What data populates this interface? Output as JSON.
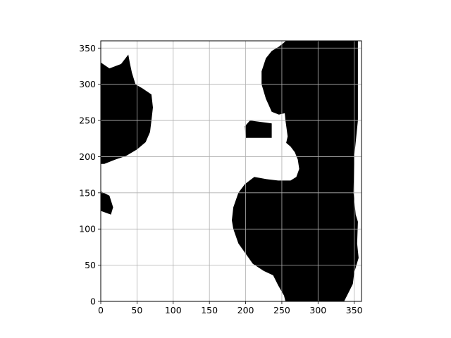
{
  "chart_data": {
    "type": "heatmap",
    "title": "",
    "xlabel": "",
    "ylabel": "",
    "xlim": [
      0,
      360
    ],
    "ylim": [
      0,
      360
    ],
    "xticks": [
      0,
      50,
      100,
      150,
      200,
      250,
      300,
      350
    ],
    "yticks": [
      0,
      50,
      100,
      150,
      200,
      250,
      300,
      350
    ],
    "grid": true,
    "colormap": {
      "0": "#ffffff",
      "1": "#000000"
    },
    "regions": [
      {
        "name": "upper-left-mass",
        "value": 1,
        "outline": [
          [
            0,
            190
          ],
          [
            5,
            190
          ],
          [
            20,
            196
          ],
          [
            35,
            201
          ],
          [
            50,
            210
          ],
          [
            62,
            220
          ],
          [
            68,
            234
          ],
          [
            70,
            250
          ],
          [
            72,
            268
          ],
          [
            70,
            286
          ],
          [
            58,
            294
          ],
          [
            48,
            300
          ],
          [
            43,
            316
          ],
          [
            40,
            330
          ],
          [
            38,
            341
          ],
          [
            28,
            328
          ],
          [
            12,
            322
          ],
          [
            0,
            330
          ]
        ]
      },
      {
        "name": "left-speck",
        "value": 1,
        "outline": [
          [
            0,
            125
          ],
          [
            14,
            120
          ],
          [
            17,
            130
          ],
          [
            12,
            146
          ],
          [
            4,
            150
          ],
          [
            0,
            152
          ]
        ]
      },
      {
        "name": "right-mass",
        "value": 1,
        "outline": [
          [
            0,
            0
          ],
          [
            255,
            0
          ],
          [
            253,
            8
          ],
          [
            245,
            22
          ],
          [
            238,
            36
          ],
          [
            225,
            42
          ],
          [
            210,
            52
          ],
          [
            200,
            66
          ],
          [
            190,
            80
          ],
          [
            183,
            100
          ],
          [
            181,
            112
          ],
          [
            183,
            130
          ],
          [
            190,
            150
          ],
          [
            199,
            162
          ],
          [
            212,
            172
          ],
          [
            228,
            169
          ],
          [
            245,
            167
          ],
          [
            262,
            167
          ],
          [
            270,
            172
          ],
          [
            274,
            183
          ],
          [
            272,
            196
          ],
          [
            268,
            206
          ],
          [
            262,
            214
          ],
          [
            256,
            219
          ],
          [
            258,
            228
          ],
          [
            255,
            250
          ],
          [
            254,
            260
          ],
          [
            246,
            258
          ],
          [
            236,
            262
          ],
          [
            228,
            280
          ],
          [
            222,
            300
          ],
          [
            222,
            318
          ],
          [
            228,
            336
          ],
          [
            236,
            346
          ],
          [
            246,
            352
          ],
          [
            256,
            360
          ],
          [
            355,
            360
          ],
          [
            355,
            290
          ],
          [
            355,
            250
          ],
          [
            350,
            200
          ],
          [
            349,
            150
          ],
          [
            352,
            120
          ],
          [
            355,
            110
          ],
          [
            354,
            80
          ],
          [
            356,
            60
          ],
          [
            350,
            40
          ],
          [
            348,
            24
          ],
          [
            342,
            12
          ],
          [
            336,
            0
          ]
        ]
      },
      {
        "name": "mid-cluster",
        "value": 1,
        "outline": [
          [
            200,
            226
          ],
          [
            236,
            226
          ],
          [
            236,
            246
          ],
          [
            206,
            250
          ],
          [
            199,
            242
          ]
        ]
      }
    ]
  }
}
